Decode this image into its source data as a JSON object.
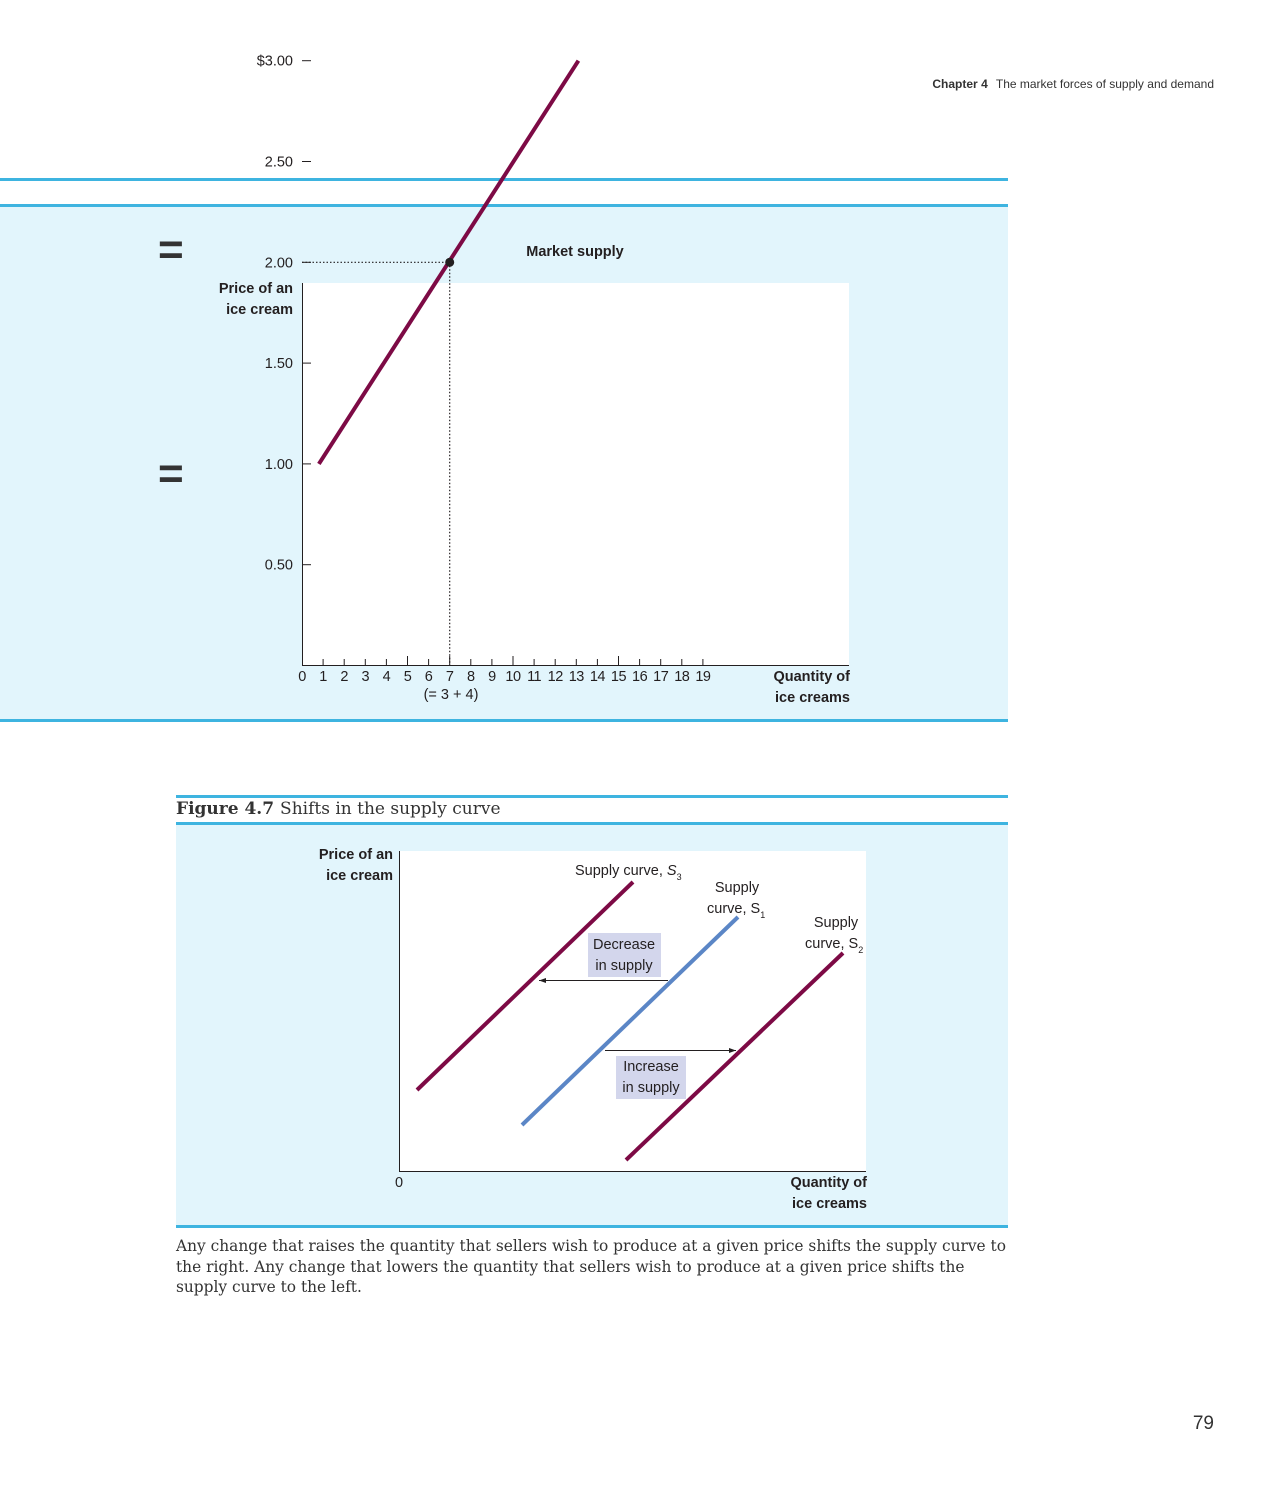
{
  "header": {
    "chapter": "Chapter 4",
    "chapter_title": "The market forces of supply and demand"
  },
  "market_supply": {
    "equals_sign": "=",
    "chart_data": {
      "type": "line",
      "title": "Market supply",
      "ylabel_line1": "Price of an",
      "ylabel_line2": "ice cream",
      "xlabel_line1": "Quantity of",
      "xlabel_line2": "ice creams",
      "ylim": [
        0,
        3.5
      ],
      "xlim": [
        0,
        26
      ],
      "y_ticks": [
        {
          "value": 3.0,
          "label": "$3.00"
        },
        {
          "value": 2.5,
          "label": "2.50"
        },
        {
          "value": 2.0,
          "label": "2.00"
        },
        {
          "value": 1.5,
          "label": "1.50"
        },
        {
          "value": 1.0,
          "label": "1.00"
        },
        {
          "value": 0.5,
          "label": "0.50"
        }
      ],
      "x_ticks": [
        0,
        1,
        2,
        3,
        4,
        5,
        6,
        7,
        8,
        9,
        10,
        11,
        12,
        13,
        14,
        15,
        16,
        17,
        18,
        19
      ],
      "x_tick_note": "(= 3 + 4)",
      "series": [
        {
          "points": [
            [
              0.8,
              1.0
            ],
            [
              13.1,
              3.0
            ]
          ],
          "color": "#7d0a45"
        }
      ],
      "highlight_point": {
        "x": 7,
        "y": 2.0
      }
    }
  },
  "figure": {
    "number": "Figure 4.7",
    "title": "Shifts in the supply curve",
    "chart_data": {
      "type": "line",
      "ylabel_line1": "Price of an",
      "ylabel_line2": "ice cream",
      "xlabel_line1": "Quantity of",
      "xlabel_line2": "ice creams",
      "origin_label": "0",
      "series": [
        {
          "label_prefix": "Supply curve, ",
          "label_var": "S",
          "label_sub": "3",
          "color": "#7d0a45"
        },
        {
          "label_line1": "Supply",
          "label_prefix": "curve, ",
          "label_var": "S",
          "label_sub": "1",
          "color": "#5b86c6"
        },
        {
          "label_line1": "Supply",
          "label_prefix": "curve, ",
          "label_var": "S",
          "label_sub": "2",
          "color": "#7d0a45"
        }
      ],
      "annotations": [
        {
          "line1": "Decrease",
          "line2": "in supply"
        },
        {
          "line1": "Increase",
          "line2": "in supply"
        }
      ]
    },
    "caption": "Any change that raises the quantity that sellers wish to produce at a given price shifts the supply curve to the right. Any change that lowers the quantity that sellers wish to produce at a given price shifts the supply curve to the left."
  },
  "page_number": "79"
}
